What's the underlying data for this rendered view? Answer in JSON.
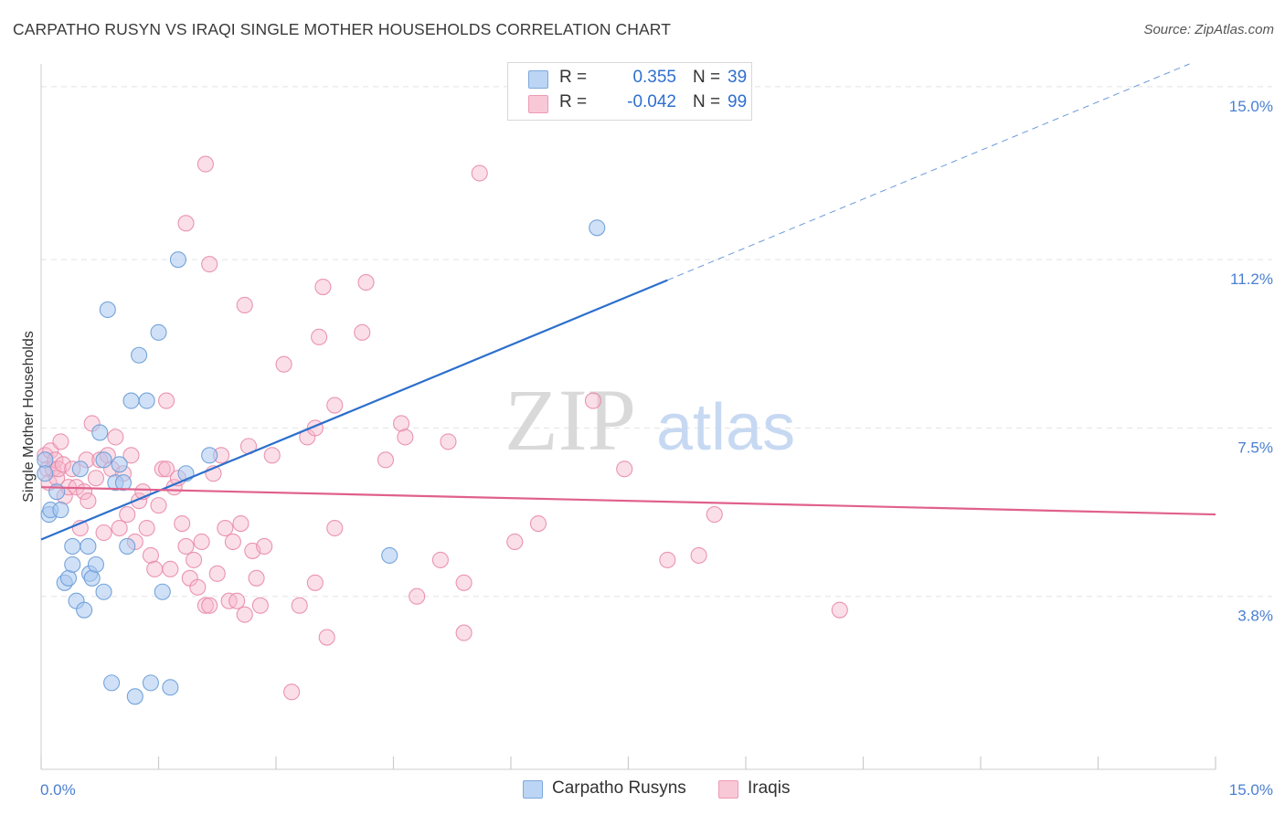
{
  "title": "CARPATHO RUSYN VS IRAQI SINGLE MOTHER HOUSEHOLDS CORRELATION CHART",
  "source": "Source: ZipAtlas.com",
  "watermark": {
    "zip": "ZIP",
    "atlas": "atlas"
  },
  "legend_top": {
    "rows": [
      {
        "r_label": "R =",
        "r_value": "0.355",
        "n_label": "N =",
        "n_value": "39"
      },
      {
        "r_label": "R =",
        "r_value": "-0.042",
        "n_label": "N =",
        "n_value": "99"
      }
    ]
  },
  "legend_bottom": {
    "series1": "Carpatho Rusyns",
    "series2": "Iraqis"
  },
  "colors": {
    "blue_fill": "#a9c8f0",
    "blue_stroke": "#6f9fd8",
    "blue_line": "#2c6fcc",
    "pink_fill": "#f6b9cc",
    "pink_stroke": "#e88aa8",
    "pink_line": "#e0608d",
    "grid": "#e3e3e3",
    "axis": "#cccccc",
    "tick_text": "#4a7fd1"
  },
  "chart_data": {
    "type": "scatter",
    "title": "CARPATHO RUSYN VS IRAQI SINGLE MOTHER HOUSEHOLDS CORRELATION CHART",
    "xlabel": "",
    "ylabel": "Single Mother Households",
    "xlim": [
      0,
      15
    ],
    "ylim": [
      0,
      15.5
    ],
    "x_tick_labels": [
      "0.0%",
      "15.0%"
    ],
    "y_ticks": [
      3.8,
      7.5,
      11.2,
      15.0
    ],
    "y_tick_labels": [
      "3.8%",
      "7.5%",
      "11.2%",
      "15.0%"
    ],
    "grid": true,
    "series": [
      {
        "name": "Carpatho Rusyns",
        "color": "blue",
        "r": 0.355,
        "n": 39,
        "trend": {
          "x0": 0.0,
          "y0": 5.05,
          "x1": 8.0,
          "y1": 10.75,
          "dash_to_x": 15.0
        },
        "points": [
          [
            0.05,
            6.8
          ],
          [
            0.05,
            6.5
          ],
          [
            0.1,
            5.6
          ],
          [
            0.12,
            5.7
          ],
          [
            0.2,
            6.1
          ],
          [
            0.25,
            5.7
          ],
          [
            0.3,
            4.1
          ],
          [
            0.35,
            4.2
          ],
          [
            0.4,
            4.9
          ],
          [
            0.4,
            4.5
          ],
          [
            0.45,
            3.7
          ],
          [
            0.5,
            6.6
          ],
          [
            0.55,
            3.5
          ],
          [
            0.6,
            4.9
          ],
          [
            0.62,
            4.3
          ],
          [
            0.65,
            4.2
          ],
          [
            0.7,
            4.5
          ],
          [
            0.75,
            7.4
          ],
          [
            0.8,
            3.9
          ],
          [
            0.85,
            10.1
          ],
          [
            0.9,
            1.9
          ],
          [
            0.95,
            6.3
          ],
          [
            0.8,
            6.8
          ],
          [
            1.0,
            6.7
          ],
          [
            1.05,
            6.3
          ],
          [
            1.1,
            4.9
          ],
          [
            1.15,
            8.1
          ],
          [
            1.2,
            1.6
          ],
          [
            1.25,
            9.1
          ],
          [
            1.35,
            8.1
          ],
          [
            1.5,
            9.6
          ],
          [
            1.55,
            3.9
          ],
          [
            1.65,
            1.8
          ],
          [
            1.75,
            11.2
          ],
          [
            1.85,
            6.5
          ],
          [
            2.15,
            6.9
          ],
          [
            4.45,
            4.7
          ],
          [
            7.1,
            11.9
          ],
          [
            1.4,
            1.9
          ]
        ]
      },
      {
        "name": "Iraqis",
        "color": "pink",
        "r": -0.042,
        "n": 99,
        "trend": {
          "x0": 0.0,
          "y0": 6.2,
          "x1": 15.0,
          "y1": 5.6
        },
        "points": [
          [
            0.05,
            6.9
          ],
          [
            0.08,
            6.6
          ],
          [
            0.1,
            6.3
          ],
          [
            0.12,
            7.0
          ],
          [
            0.15,
            6.6
          ],
          [
            0.18,
            6.8
          ],
          [
            0.2,
            6.4
          ],
          [
            0.22,
            6.6
          ],
          [
            0.25,
            7.2
          ],
          [
            0.28,
            6.7
          ],
          [
            0.3,
            6.0
          ],
          [
            0.35,
            6.2
          ],
          [
            0.4,
            6.6
          ],
          [
            0.45,
            6.2
          ],
          [
            0.5,
            5.3
          ],
          [
            0.55,
            6.1
          ],
          [
            0.58,
            6.8
          ],
          [
            0.6,
            5.9
          ],
          [
            0.65,
            7.6
          ],
          [
            0.7,
            6.4
          ],
          [
            0.75,
            6.8
          ],
          [
            0.8,
            5.2
          ],
          [
            0.85,
            6.9
          ],
          [
            0.9,
            6.6
          ],
          [
            0.95,
            7.3
          ],
          [
            1.0,
            5.3
          ],
          [
            1.05,
            6.5
          ],
          [
            1.1,
            5.6
          ],
          [
            1.15,
            6.9
          ],
          [
            1.2,
            5.0
          ],
          [
            1.25,
            5.9
          ],
          [
            1.3,
            6.1
          ],
          [
            1.35,
            5.3
          ],
          [
            1.4,
            4.7
          ],
          [
            1.45,
            4.4
          ],
          [
            1.5,
            5.8
          ],
          [
            1.55,
            6.6
          ],
          [
            1.6,
            6.6
          ],
          [
            1.65,
            4.4
          ],
          [
            1.7,
            6.2
          ],
          [
            1.75,
            6.4
          ],
          [
            1.8,
            5.4
          ],
          [
            1.85,
            4.9
          ],
          [
            1.9,
            4.2
          ],
          [
            1.95,
            4.6
          ],
          [
            2.0,
            4.0
          ],
          [
            2.05,
            5.0
          ],
          [
            2.1,
            3.6
          ],
          [
            2.15,
            3.6
          ],
          [
            2.2,
            6.5
          ],
          [
            2.25,
            4.3
          ],
          [
            2.3,
            6.9
          ],
          [
            2.35,
            5.3
          ],
          [
            2.4,
            3.7
          ],
          [
            2.45,
            5.0
          ],
          [
            2.5,
            3.7
          ],
          [
            2.55,
            5.4
          ],
          [
            2.6,
            3.4
          ],
          [
            2.65,
            7.1
          ],
          [
            2.7,
            4.8
          ],
          [
            2.75,
            4.2
          ],
          [
            2.8,
            3.6
          ],
          [
            2.85,
            4.9
          ],
          [
            2.95,
            6.9
          ],
          [
            1.6,
            8.1
          ],
          [
            1.85,
            12.0
          ],
          [
            2.1,
            13.3
          ],
          [
            2.15,
            11.1
          ],
          [
            2.6,
            10.2
          ],
          [
            3.1,
            8.9
          ],
          [
            3.55,
            9.5
          ],
          [
            3.6,
            10.6
          ],
          [
            3.75,
            8.0
          ],
          [
            4.1,
            9.6
          ],
          [
            4.15,
            10.7
          ],
          [
            4.6,
            7.6
          ],
          [
            4.65,
            7.3
          ],
          [
            3.75,
            5.3
          ],
          [
            3.3,
            3.6
          ],
          [
            3.4,
            7.3
          ],
          [
            3.5,
            7.5
          ],
          [
            4.4,
            6.8
          ],
          [
            4.8,
            3.8
          ],
          [
            5.1,
            4.6
          ],
          [
            5.2,
            7.2
          ],
          [
            5.4,
            4.1
          ],
          [
            5.4,
            3.0
          ],
          [
            5.6,
            13.1
          ],
          [
            6.05,
            5.0
          ],
          [
            6.35,
            5.4
          ],
          [
            7.05,
            8.1
          ],
          [
            7.45,
            6.6
          ],
          [
            8.0,
            4.6
          ],
          [
            8.4,
            4.7
          ],
          [
            8.6,
            5.6
          ],
          [
            10.2,
            3.5
          ],
          [
            3.65,
            2.9
          ],
          [
            3.2,
            1.7
          ],
          [
            3.5,
            4.1
          ]
        ]
      }
    ]
  }
}
